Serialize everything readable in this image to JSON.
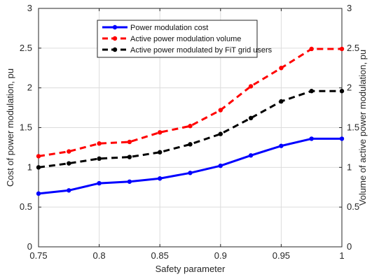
{
  "chart_data": {
    "type": "line",
    "title": "",
    "xlabel": "Safety parameter",
    "ylabel_left": "Cost of power modulation, pu",
    "ylabel_right": "Volume of active power modulation, pu",
    "xlim": [
      0.75,
      1
    ],
    "ylim": [
      0,
      3
    ],
    "xticks": [
      "0.75",
      "0.8",
      "0.85",
      "0.9",
      "0.95",
      "1"
    ],
    "yticks_left": [
      "0",
      "0.5",
      "1",
      "1.5",
      "2",
      "2.5",
      "3"
    ],
    "yticks_right": [
      "0",
      "0.5",
      "1",
      "1.5",
      "2",
      "2.5",
      "3"
    ],
    "x": [
      0.75,
      0.775,
      0.8,
      0.825,
      0.85,
      0.875,
      0.9,
      0.925,
      0.95,
      0.975,
      1.0
    ],
    "grid": true,
    "legend_position": "top-center",
    "series": [
      {
        "name": "Power modulation cost",
        "color": "#0000ff",
        "line_style": "solid",
        "values": [
          0.67,
          0.71,
          0.8,
          0.82,
          0.86,
          0.93,
          1.02,
          1.15,
          1.27,
          1.36,
          1.36
        ]
      },
      {
        "name": "Active power modulation volume",
        "color": "#ff0000",
        "line_style": "dashed",
        "values": [
          1.14,
          1.2,
          1.3,
          1.32,
          1.44,
          1.52,
          1.72,
          2.02,
          2.25,
          2.49,
          2.49
        ]
      },
      {
        "name": "Active power modulated by FiT grid users",
        "color": "#000000",
        "line_style": "dashed",
        "values": [
          1.0,
          1.05,
          1.11,
          1.13,
          1.19,
          1.29,
          1.42,
          1.62,
          1.83,
          1.96,
          1.96
        ]
      }
    ]
  }
}
